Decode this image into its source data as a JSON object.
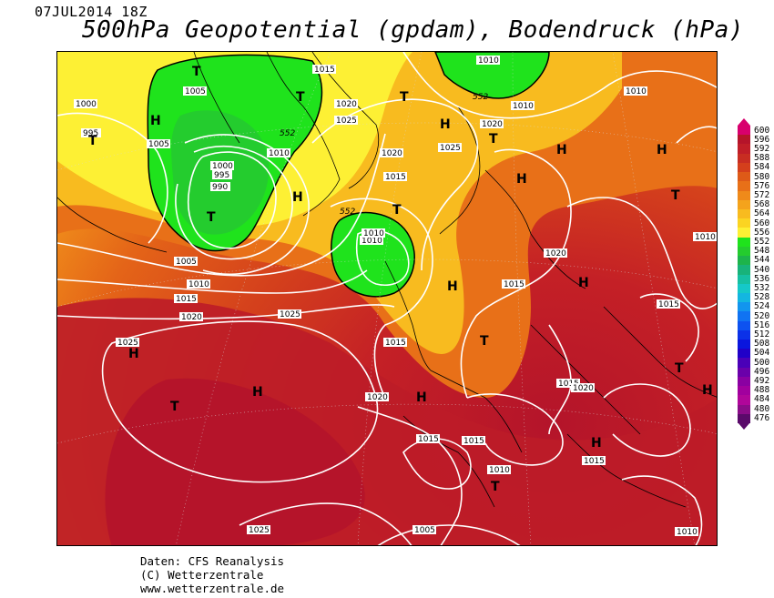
{
  "header": {
    "date": "07JUL2014 18Z",
    "title": "500hPa Geopotential (gpdam), Bodendruck (hPa)"
  },
  "credits": {
    "line1": "Daten: CFS Reanalysis",
    "line2": "(C) Wetterzentrale",
    "line3": "www.wetterzentrale.de"
  },
  "legend": {
    "levels": [
      "600",
      "596",
      "592",
      "588",
      "584",
      "580",
      "576",
      "572",
      "568",
      "564",
      "560",
      "556",
      "552",
      "548",
      "544",
      "540",
      "536",
      "532",
      "528",
      "524",
      "520",
      "516",
      "512",
      "508",
      "504",
      "500",
      "496",
      "492",
      "488",
      "484",
      "480",
      "476"
    ],
    "colors": [
      "#d8006e",
      "#b5142a",
      "#c01e28",
      "#c82d22",
      "#d43f1c",
      "#de5a18",
      "#e87018",
      "#ef8a1a",
      "#f4a31c",
      "#f8bb1f",
      "#fbd422",
      "#fdf034",
      "#1fe31c",
      "#24cc2e",
      "#1db44b",
      "#18b37a",
      "#16c0a2",
      "#15c8c8",
      "#13b6e0",
      "#1295ee",
      "#1073f2",
      "#0d52f0",
      "#0b31e8",
      "#0a16de",
      "#2000c8",
      "#4a00b8",
      "#6a00aa",
      "#8a00a2",
      "#a1009e",
      "#b0069a",
      "#8a0c88",
      "#5a0a6a"
    ]
  },
  "map": {
    "high_labels": [
      "H",
      "H",
      "H",
      "H",
      "H",
      "H",
      "H",
      "H",
      "H",
      "H",
      "H",
      "H",
      "H"
    ],
    "low_labels": [
      "T",
      "T",
      "T",
      "T",
      "T",
      "T",
      "T",
      "T",
      "T",
      "T",
      "T",
      "T"
    ],
    "isobar_labels": [
      "1000",
      "995",
      "1005",
      "1005",
      "1000",
      "995",
      "990",
      "1005",
      "1010",
      "1015",
      "1020",
      "1025",
      "1010",
      "1015",
      "1010",
      "1015",
      "1020",
      "1025",
      "1020",
      "1015",
      "1025",
      "1010",
      "1020",
      "1015",
      "1010",
      "1015",
      "1015",
      "1020",
      "1015",
      "1015",
      "1010",
      "1005",
      "1010",
      "1025",
      "1025",
      "1020",
      "1010",
      "1020",
      "1010",
      "552",
      "552",
      "552",
      "1010",
      "1015"
    ]
  }
}
